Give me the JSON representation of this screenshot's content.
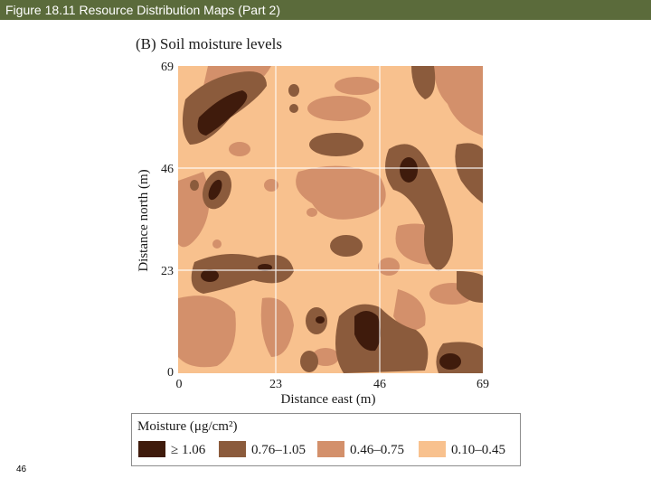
{
  "header": {
    "title": "Figure 18.11  Resource Distribution Maps (Part 2)"
  },
  "figure": {
    "title": "(B)  Soil moisture levels",
    "x_axis": {
      "label": "Distance east (m)",
      "ticks": [
        "0",
        "23",
        "46",
        "69"
      ]
    },
    "y_axis": {
      "label": "Distance north (m)",
      "ticks": [
        "0",
        "23",
        "46",
        "69"
      ]
    }
  },
  "legend": {
    "title": "Moisture (μg/cm²)",
    "items": [
      "≥ 1.06",
      "0.76–1.05",
      "0.46–0.75",
      "0.10–0.45"
    ]
  },
  "page_number": "46"
}
